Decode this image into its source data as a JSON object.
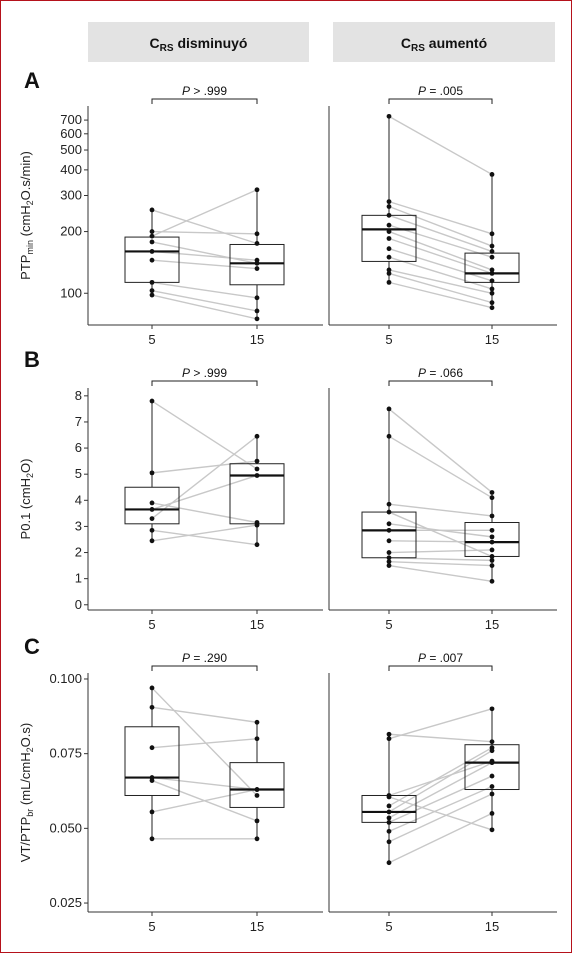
{
  "facets": [
    "CRS disminuyó",
    "CRS aumentó"
  ],
  "facet_subscript": "RS",
  "panel_letters": [
    "A",
    "B",
    "C"
  ],
  "chart_data": [
    {
      "type": "box",
      "panel": "A",
      "ylabel": "PTPmin (cmH2O.s/min)",
      "ylabel_parts": {
        "main": "PTP",
        "sub": "min",
        "rest": " (cmH",
        "sub2": "2",
        "rest2": "O.s/min)"
      },
      "yscale": "log",
      "ylim": [
        70,
        820
      ],
      "yticks": [
        100,
        200,
        300,
        400,
        500,
        600,
        700
      ],
      "ytick_labels": [
        "100",
        "200",
        "300",
        "400",
        "500",
        "600",
        "700"
      ],
      "categories": [
        "5",
        "15"
      ],
      "facets": [
        {
          "name": "CRS disminuyó",
          "p_label": "P > .999",
          "boxes": [
            {
              "x": "5",
              "q1": 113,
              "median": 160,
              "q3": 188,
              "wlo": 98,
              "whi": 255
            },
            {
              "x": "15",
              "q1": 110,
              "median": 140,
              "q3": 173,
              "wlo": 75,
              "whi": 320
            }
          ],
          "pairs": [
            [
              255,
              175
            ],
            [
              200,
              195
            ],
            [
              178,
              140
            ],
            [
              160,
              145
            ],
            [
              145,
              132
            ],
            [
              113,
              95
            ],
            [
              103,
              82
            ],
            [
              98,
              75
            ],
            [
              190,
              320
            ]
          ]
        },
        {
          "name": "CRS aumentó",
          "p_label": "P = .005",
          "boxes": [
            {
              "x": "5",
              "q1": 143,
              "median": 205,
              "q3": 240,
              "wlo": 113,
              "whi": 730
            },
            {
              "x": "15",
              "q1": 113,
              "median": 125,
              "q3": 157,
              "wlo": 85,
              "whi": 380
            }
          ],
          "pairs": [
            [
              730,
              380
            ],
            [
              280,
              195
            ],
            [
              265,
              170
            ],
            [
              240,
              160
            ],
            [
              215,
              150
            ],
            [
              200,
              130
            ],
            [
              185,
              125
            ],
            [
              165,
              115
            ],
            [
              150,
              105
            ],
            [
              130,
              100
            ],
            [
              125,
              90
            ],
            [
              113,
              85
            ]
          ]
        }
      ]
    },
    {
      "type": "box",
      "panel": "B",
      "ylabel": "P0.1 (cmH2O)",
      "ylabel_parts": {
        "main": "P0.1 (cmH",
        "sub": "2",
        "rest": "O)"
      },
      "yscale": "linear",
      "ylim": [
        -0.2,
        8.3
      ],
      "yticks": [
        0,
        1,
        2,
        3,
        4,
        5,
        6,
        7,
        8
      ],
      "ytick_labels": [
        "0",
        "1",
        "2",
        "3",
        "4",
        "5",
        "6",
        "7",
        "8"
      ],
      "categories": [
        "5",
        "15"
      ],
      "facets": [
        {
          "name": "CRS disminuyó",
          "p_label": "P > .999",
          "boxes": [
            {
              "x": "5",
              "q1": 3.1,
              "median": 3.65,
              "q3": 4.5,
              "wlo": 2.45,
              "whi": 7.8
            },
            {
              "x": "15",
              "q1": 3.1,
              "median": 4.95,
              "q3": 5.4,
              "wlo": 2.3,
              "whi": 6.45
            }
          ],
          "pairs": [
            [
              7.8,
              5.2
            ],
            [
              5.05,
              5.5
            ],
            [
              3.9,
              3.15
            ],
            [
              3.65,
              4.95
            ],
            [
              3.3,
              6.45
            ],
            [
              2.85,
              2.3
            ],
            [
              2.45,
              3.05
            ]
          ]
        },
        {
          "name": "CRS aumentó",
          "p_label": "P = .066",
          "boxes": [
            {
              "x": "5",
              "q1": 1.8,
              "median": 2.85,
              "q3": 3.55,
              "wlo": 1.5,
              "whi": 7.5
            },
            {
              "x": "15",
              "q1": 1.85,
              "median": 2.4,
              "q3": 3.15,
              "wlo": 0.9,
              "whi": 4.3
            }
          ],
          "pairs": [
            [
              7.5,
              4.3
            ],
            [
              6.45,
              4.1
            ],
            [
              3.85,
              3.4
            ],
            [
              3.55,
              1.85
            ],
            [
              3.1,
              2.6
            ],
            [
              2.85,
              2.85
            ],
            [
              2.45,
              2.4
            ],
            [
              2.0,
              2.1
            ],
            [
              1.8,
              1.7
            ],
            [
              1.65,
              1.5
            ],
            [
              1.5,
              0.9
            ]
          ]
        }
      ]
    },
    {
      "type": "box",
      "panel": "C",
      "ylabel": "VT/PTPbr (mL/cmH2O.s)",
      "ylabel_parts": {
        "main": "VT/PTP",
        "sub": "br",
        "rest": " (mL/cmH",
        "sub2": "2",
        "rest2": "O.s)"
      },
      "yscale": "linear",
      "ylim": [
        0.022,
        0.102
      ],
      "yticks": [
        0.025,
        0.05,
        0.075,
        0.1
      ],
      "ytick_labels": [
        "0.025",
        "0.050",
        "0.075",
        "0.100"
      ],
      "categories": [
        "5",
        "15"
      ],
      "facets": [
        {
          "name": "CRS disminuyó",
          "p_label": "P = .290",
          "boxes": [
            {
              "x": "5",
              "q1": 0.061,
              "median": 0.067,
              "q3": 0.084,
              "wlo": 0.0465,
              "whi": 0.097
            },
            {
              "x": "15",
              "q1": 0.057,
              "median": 0.063,
              "q3": 0.072,
              "wlo": 0.0465,
              "whi": 0.0855
            }
          ],
          "pairs": [
            [
              0.097,
              0.061
            ],
            [
              0.0905,
              0.0855
            ],
            [
              0.077,
              0.08
            ],
            [
              0.067,
              0.063
            ],
            [
              0.066,
              0.0525
            ],
            [
              0.0555,
              0.063
            ],
            [
              0.0465,
              0.0465
            ]
          ]
        },
        {
          "name": "CRS aumentó",
          "p_label": "P = .007",
          "boxes": [
            {
              "x": "5",
              "q1": 0.052,
              "median": 0.0555,
              "q3": 0.061,
              "wlo": 0.0385,
              "whi": 0.0815
            },
            {
              "x": "15",
              "q1": 0.063,
              "median": 0.072,
              "q3": 0.078,
              "wlo": 0.0495,
              "whi": 0.09
            }
          ],
          "pairs": [
            [
              0.0815,
              0.079
            ],
            [
              0.08,
              0.09
            ],
            [
              0.061,
              0.0725
            ],
            [
              0.0605,
              0.0495
            ],
            [
              0.0575,
              0.077
            ],
            [
              0.0555,
              0.076
            ],
            [
              0.0535,
              0.072
            ],
            [
              0.052,
              0.0675
            ],
            [
              0.049,
              0.064
            ],
            [
              0.0455,
              0.0615
            ],
            [
              0.0385,
              0.055
            ]
          ]
        }
      ]
    }
  ]
}
